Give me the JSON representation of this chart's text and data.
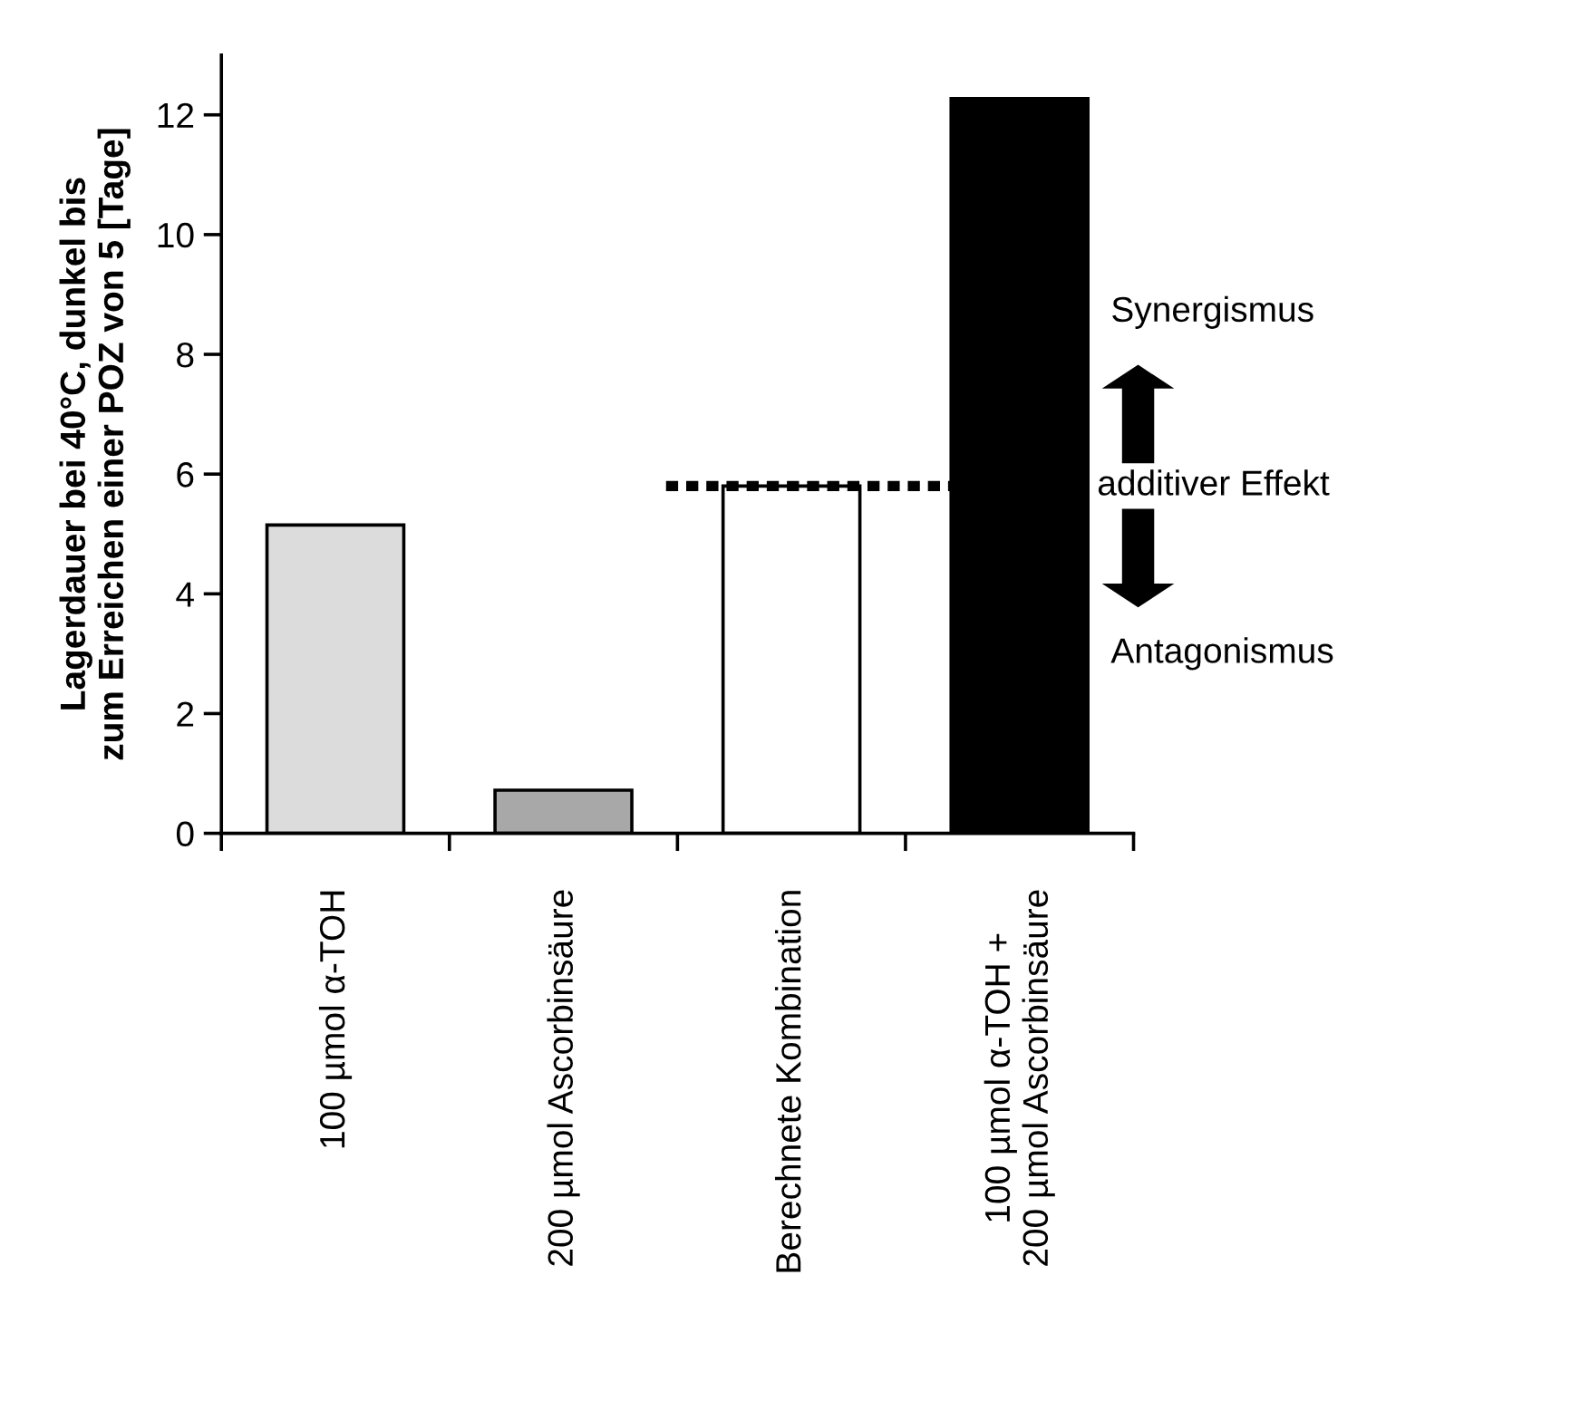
{
  "chart_data": {
    "type": "bar",
    "ylabel": "Lagerdauer bei 40°C, dunkel bis\nzum Erreichen einer POZ von 5 [Tage]",
    "categories": [
      "100 µmol α-TOH",
      "200 µmol Ascorbinsäure",
      "Berechnete Kombination",
      "100 µmol α-TOH +\n200 µmol Ascorbinsäure"
    ],
    "values": [
      5.15,
      0.72,
      5.8,
      12.27
    ],
    "colors": [
      "#dcdcdc",
      "#a8a8a8",
      "#ffffff",
      "#000000"
    ],
    "ylim": [
      0,
      13
    ],
    "yticks": [
      0,
      2,
      4,
      6,
      8,
      10,
      12
    ],
    "grid": false,
    "legend": false,
    "ref_lines": [
      {
        "axis": "y",
        "value": 5.8,
        "label": "additiver Effekt",
        "color": "#000000",
        "line_style": "dotted"
      }
    ],
    "annotations": [
      "Synergismus",
      "Antagonismus"
    ]
  }
}
